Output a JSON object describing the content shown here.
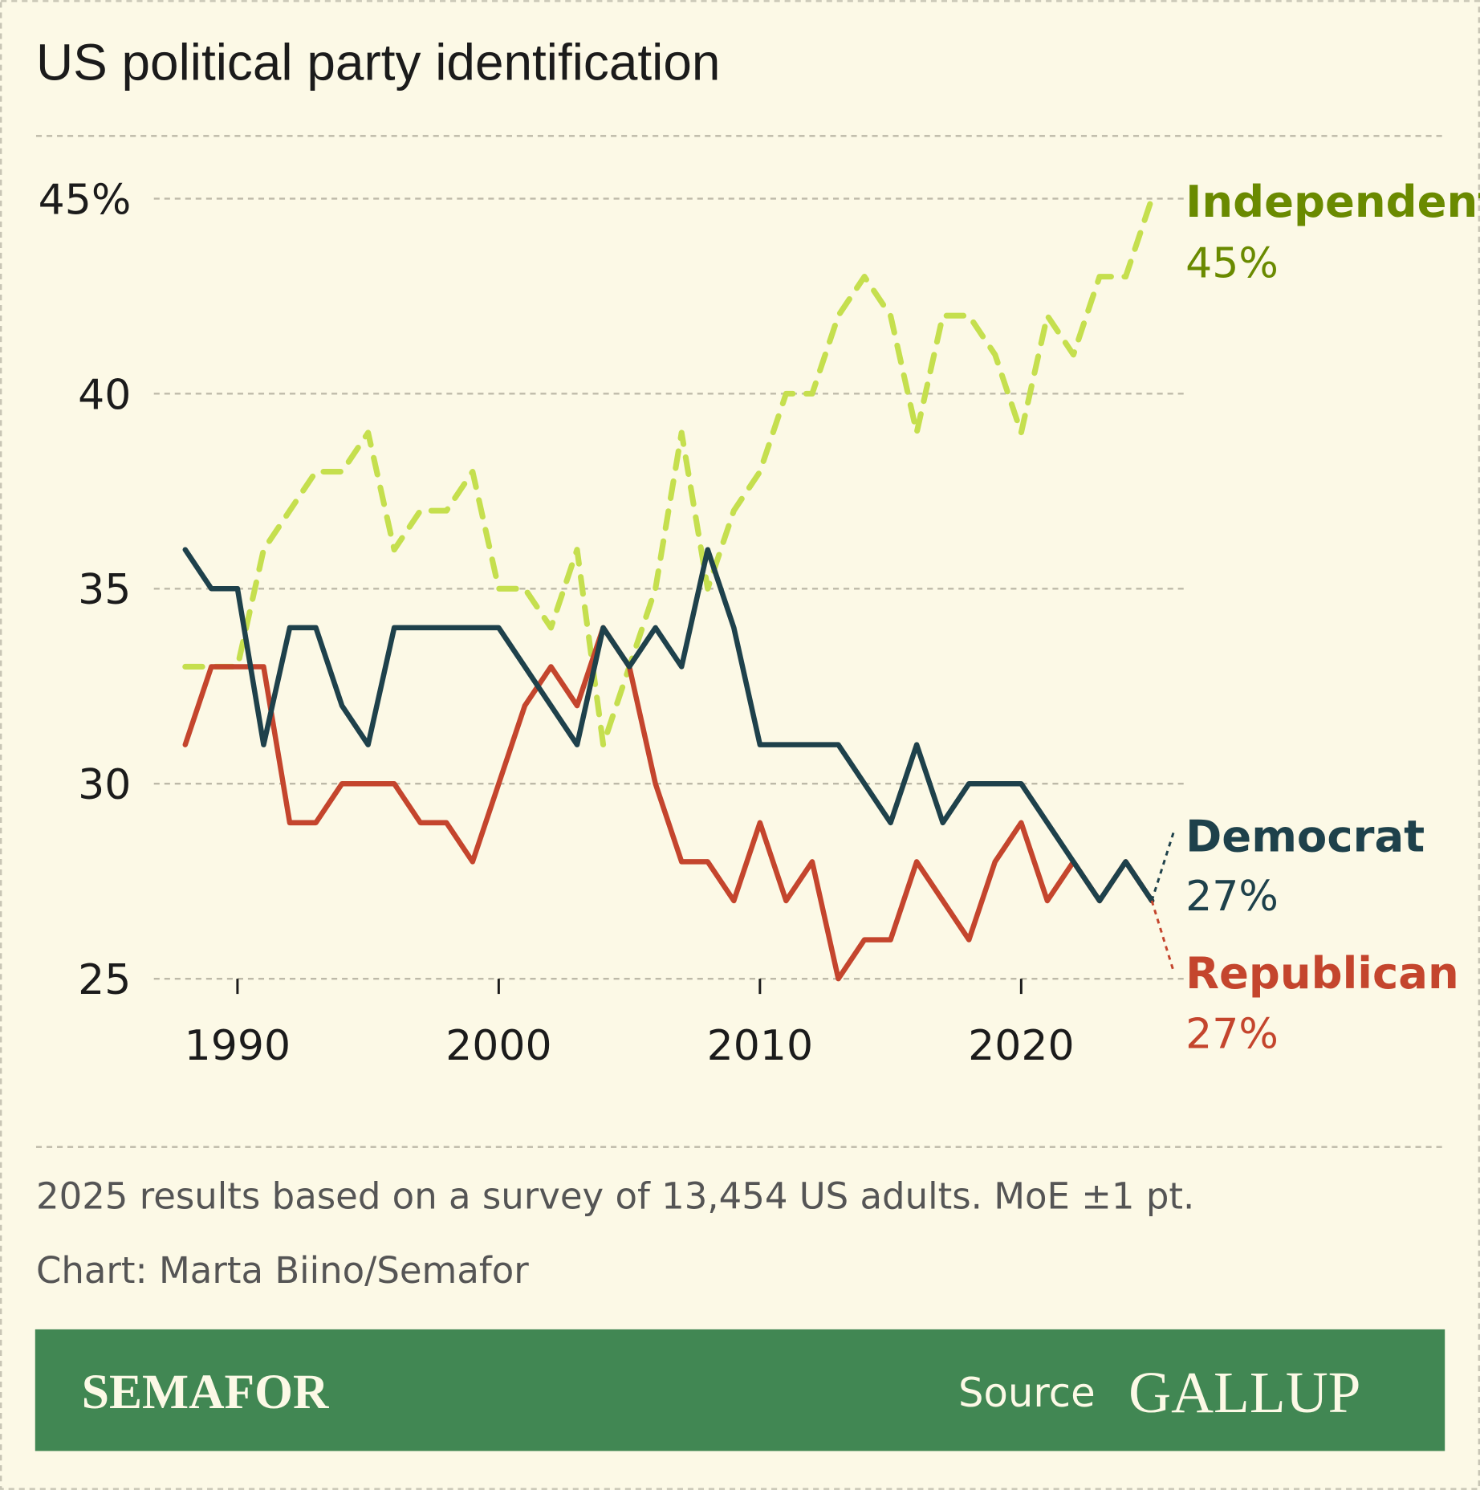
{
  "title": "US political party identification",
  "footnote": "2025 results based on a survey of 13,454 US adults. MoE ±1 pt.",
  "credit": "Chart: Marta Biino/Semafor",
  "footer": {
    "brand": "SEMAFOR",
    "source_label": "Source",
    "source_logo": "GALLUP",
    "background": "#418753"
  },
  "chart_data": {
    "type": "line",
    "x": [
      1988,
      1989,
      1990,
      1991,
      1992,
      1993,
      1994,
      1995,
      1996,
      1997,
      1998,
      1999,
      2000,
      2001,
      2002,
      2003,
      2004,
      2005,
      2006,
      2007,
      2008,
      2009,
      2010,
      2011,
      2012,
      2013,
      2014,
      2015,
      2016,
      2017,
      2018,
      2019,
      2020,
      2021,
      2022,
      2023,
      2024,
      2025
    ],
    "ylim": [
      25,
      45
    ],
    "xlim": [
      1988,
      2025
    ],
    "yticks": [
      {
        "value": 45,
        "label": "45%"
      },
      {
        "value": 40,
        "label": "40"
      },
      {
        "value": 35,
        "label": "35"
      },
      {
        "value": 30,
        "label": "30"
      },
      {
        "value": 25,
        "label": "25"
      }
    ],
    "xticks": [
      {
        "value": 1990,
        "label": "1990"
      },
      {
        "value": 2000,
        "label": "2000"
      },
      {
        "value": 2010,
        "label": "2010"
      },
      {
        "value": 2020,
        "label": "2020"
      }
    ],
    "grid": true,
    "series": [
      {
        "name": "Independent",
        "end_label": "45%",
        "color": "#c5df4e",
        "label_color": "#6a8a00",
        "dashed": true,
        "values": [
          33,
          33,
          33,
          36,
          37,
          38,
          38,
          39,
          36,
          37,
          37,
          38,
          35,
          35,
          34,
          36,
          31,
          33,
          35,
          39,
          35,
          37,
          38,
          40,
          40,
          42,
          43,
          42,
          39,
          42,
          42,
          41,
          39,
          42,
          41,
          43,
          43,
          45
        ]
      },
      {
        "name": "Democrat",
        "end_label": "27%",
        "color": "#1e414b",
        "label_color": "#1e414b",
        "dashed": false,
        "values": [
          36,
          35,
          35,
          31,
          34,
          34,
          32,
          31,
          34,
          34,
          34,
          34,
          34,
          33,
          32,
          31,
          34,
          33,
          34,
          33,
          36,
          34,
          31,
          31,
          31,
          31,
          30,
          29,
          31,
          29,
          30,
          30,
          30,
          29,
          28,
          27,
          28,
          27
        ]
      },
      {
        "name": "Republican",
        "end_label": "27%",
        "color": "#c4452d",
        "label_color": "#c4452d",
        "dashed": false,
        "values": [
          31,
          33,
          33,
          33,
          29,
          29,
          30,
          30,
          30,
          29,
          29,
          28,
          30,
          32,
          33,
          32,
          34,
          33,
          30,
          28,
          28,
          27,
          29,
          27,
          28,
          25,
          26,
          26,
          28,
          27,
          26,
          28,
          29,
          27,
          28,
          27,
          28,
          27
        ]
      }
    ]
  }
}
